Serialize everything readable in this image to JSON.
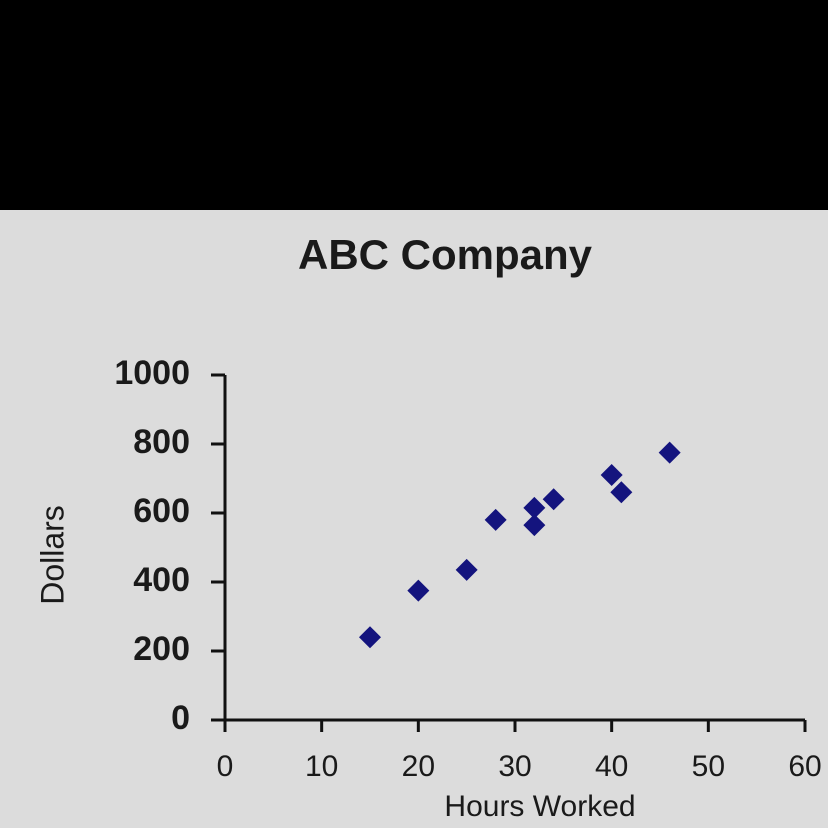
{
  "chart_data": {
    "type": "scatter",
    "title": "ABC Company",
    "x_label": "Hours Worked",
    "y_label": "Dollars",
    "series": [
      {
        "name": "Dollars",
        "color": "#14147e",
        "x": [
          15,
          20,
          25,
          28,
          32,
          32,
          34,
          40,
          41,
          46
        ],
        "values": [
          240,
          375,
          435,
          580,
          565,
          615,
          640,
          710,
          660,
          775
        ]
      }
    ],
    "xlim": [
      0,
      60
    ],
    "xticks": [
      0,
      10,
      20,
      30,
      40,
      50,
      60
    ],
    "ylim": [
      0,
      1000
    ],
    "yticks": [
      0,
      200,
      400,
      600,
      800,
      1000
    ]
  }
}
